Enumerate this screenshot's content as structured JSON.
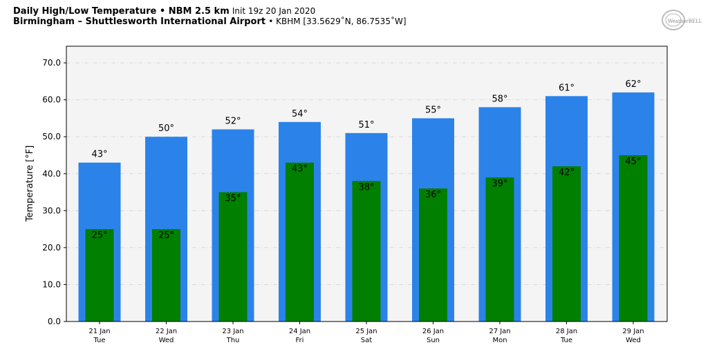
{
  "header": {
    "title_bold": "Daily High/Low Temperature • NBM 2.5 km",
    "init": "Init 19z 20 Jan 2020",
    "location_bold": "Birmingham – Shuttlesworth International Airport",
    "location_detail": "• KBHM [33.5629˚N, 86.7535˚W]"
  },
  "logo": {
    "name": "weatherbell-logo",
    "text": "WeatherBELL"
  },
  "chart_data": {
    "type": "bar",
    "categories": [
      "21 Jan",
      "22 Jan",
      "23 Jan",
      "24 Jan",
      "25 Jan",
      "26 Jan",
      "27 Jan",
      "28 Jan",
      "29 Jan"
    ],
    "weekdays": [
      "Tue",
      "Wed",
      "Thu",
      "Fri",
      "Sat",
      "Sun",
      "Mon",
      "Tue",
      "Wed"
    ],
    "series": [
      {
        "values": [
          43,
          50,
          52,
          54,
          51,
          55,
          58,
          61,
          62
        ],
        "color": "#2b83ea"
      },
      {
        "values": [
          25,
          25,
          35,
          43,
          38,
          36,
          39,
          42,
          45
        ],
        "color": "#007f00"
      }
    ],
    "high_labels": [
      "43°",
      "50°",
      "52°",
      "54°",
      "51°",
      "55°",
      "58°",
      "61°",
      "62°"
    ],
    "low_labels": [
      "25°",
      "25°",
      "35°",
      "43°",
      "38°",
      "36°",
      "39°",
      "42°",
      "45°"
    ],
    "ylabel": "Temperature [°F]",
    "ylim": [
      0,
      74.5
    ],
    "yticks": [
      0,
      10,
      20,
      30,
      40,
      50,
      60,
      70
    ],
    "ytick_labels": [
      "0.0",
      "10.0",
      "20.0",
      "30.0",
      "40.0",
      "50.0",
      "60.0",
      "70.0"
    ],
    "grid": true,
    "plot_background": "#f4f4f4"
  }
}
